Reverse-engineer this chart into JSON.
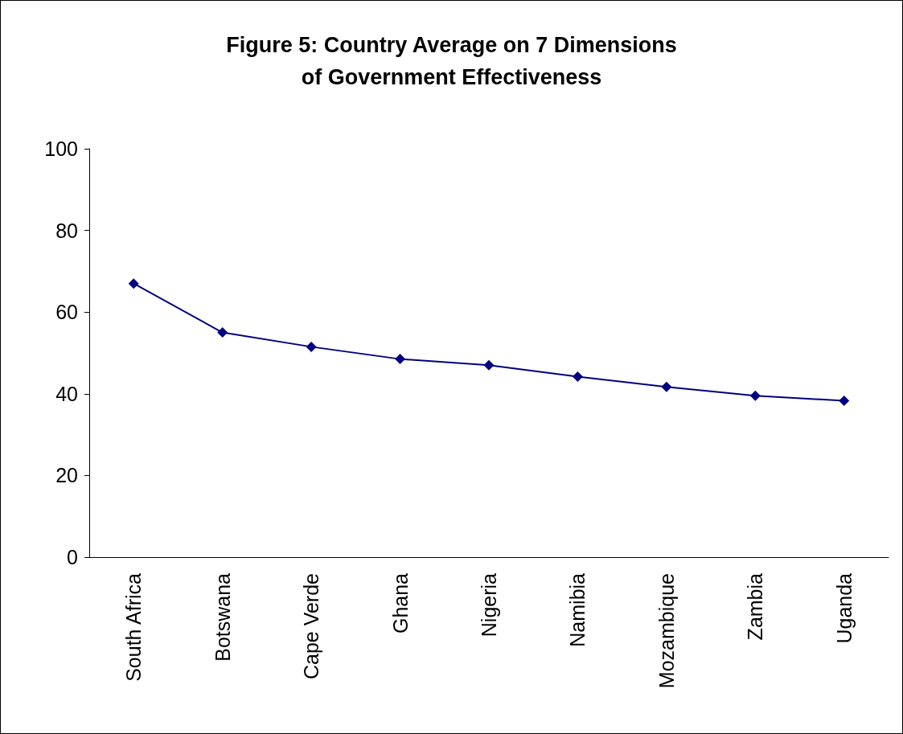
{
  "chart_data": {
    "type": "line",
    "title": "Figure 5: Country Average on 7 Dimensions\nof Government Effectiveness",
    "categories": [
      "South Africa",
      "Botswana",
      "Cape Verde",
      "Ghana",
      "Nigeria",
      "Namibia",
      "Mozambique",
      "Zambia",
      "Uganda"
    ],
    "series": [
      {
        "color": "#000080",
        "values": [
          67.0,
          55.0,
          51.5,
          48.5,
          47.0,
          44.2,
          41.7,
          39.5,
          38.3
        ]
      }
    ],
    "ylim": [
      0,
      100
    ],
    "yticks": [
      0,
      20,
      40,
      60,
      80,
      100
    ],
    "marker": "diamond",
    "line_style": "solid"
  }
}
